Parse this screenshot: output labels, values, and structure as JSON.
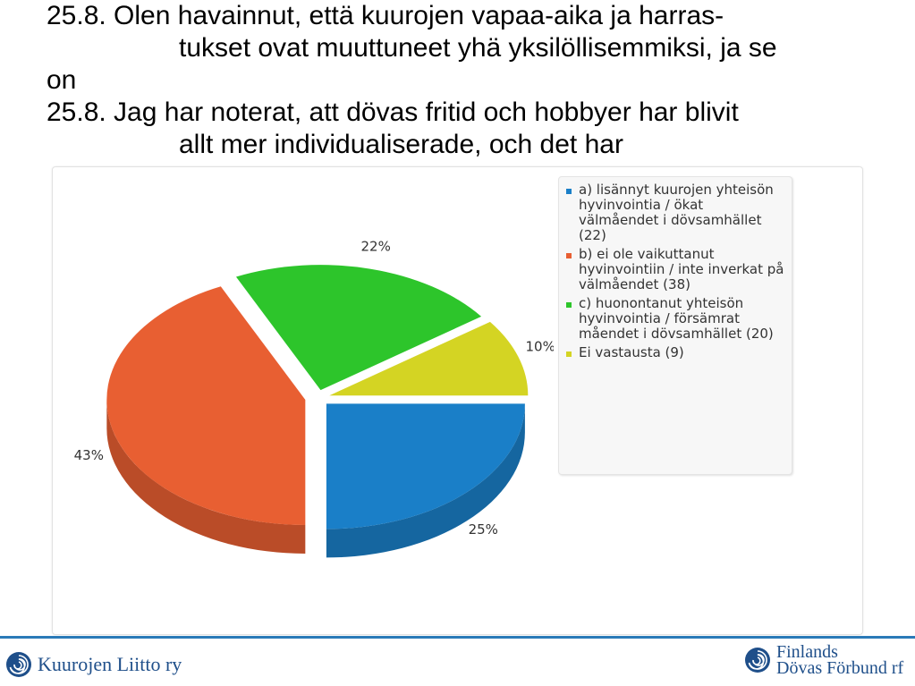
{
  "slide": {
    "title_lines": [
      "25.8. Olen havainnut, että kuurojen vapaa-aika ja harras-",
      "tukset ovat muuttuneet yhä yksilöllisemmiksi, ja se",
      "on",
      "25.8. Jag har noterat, att dövas fritid och hobbyer har blivit",
      "allt mer individualiserade, och det har"
    ]
  },
  "chart_data": {
    "type": "pie",
    "labels": [
      "a) lisännyt kuurojen yhteisön hyvinvointia / ökat välmåendet i dövsamhället (22)",
      "b) ei ole vaikuttanut hyvinvointiin / inte inverkat på välmåendet (38)",
      "c) huonontanut yhteisön hyvinvointia / försämrat måendet i dövsamhället (20)",
      "Ei vastausta (9)"
    ],
    "counts": [
      22,
      38,
      20,
      9
    ],
    "values": [
      25,
      43,
      22,
      10
    ],
    "value_labels": [
      "25%",
      "43%",
      "22%",
      "10%"
    ],
    "colors": [
      "#1a7fc8",
      "#e85f32",
      "#2dc52b",
      "#d4d423"
    ],
    "legend_position": "right"
  },
  "legend": {
    "items": [
      "a) lisännyt kuurojen yhteisön hyvinvointia / ökat välmåendet i dövsamhället (22)",
      "b) ei ole vaikuttanut hyvinvointiin / inte inverkat på välmåendet (38)",
      "c) huonontanut yhteisön hyvinvointia / försämrat måendet i dövsamhället (20)",
      "Ei vastausta (9)"
    ]
  },
  "footer": {
    "left_logo": "Kuurojen Liitto ry",
    "right_logo_line1": "Finlands",
    "right_logo_line2": "Dövas Förbund rf"
  }
}
